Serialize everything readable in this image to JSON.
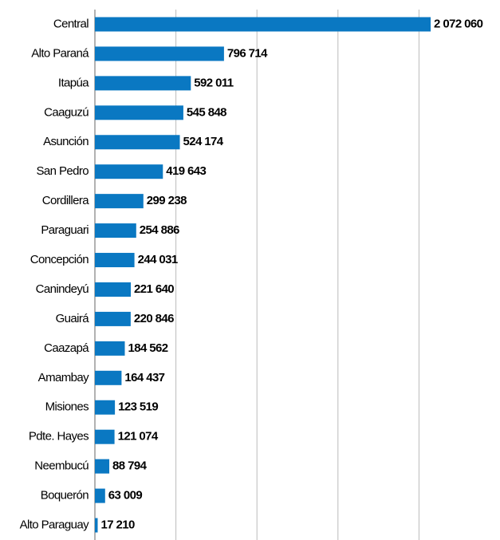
{
  "chart_data": {
    "type": "bar",
    "orientation": "horizontal",
    "categories": [
      "Central",
      "Alto Paraná",
      "Itapúa",
      "Caaguzú",
      "Asunción",
      "San Pedro",
      "Cordillera",
      "Paraguari",
      "Concepción",
      "Canindeyú",
      "Guairá",
      "Caazapá",
      "Amambay",
      "Misiones",
      "Pdte. Hayes",
      "Neembucú",
      "Boquerón",
      "Alto Paraguay"
    ],
    "values": [
      2072060,
      796714,
      592011,
      545848,
      524174,
      419643,
      299238,
      254886,
      244031,
      221640,
      220846,
      184562,
      164437,
      123519,
      121074,
      88794,
      63009,
      17210
    ],
    "value_labels": [
      "2 072 060",
      "796 714",
      "592 011",
      "545 848",
      "524 174",
      "419 643",
      "299 238",
      "254 886",
      "244 031",
      "221 640",
      "220 846",
      "184 562",
      "164 437",
      "123 519",
      "121 074",
      "88 794",
      "63 009",
      "17 210"
    ],
    "color": "#0a78c2",
    "xlim": [
      0,
      2500000
    ],
    "xticks": [
      0,
      500000,
      1000000,
      1500000,
      2000000
    ],
    "grid": true
  }
}
